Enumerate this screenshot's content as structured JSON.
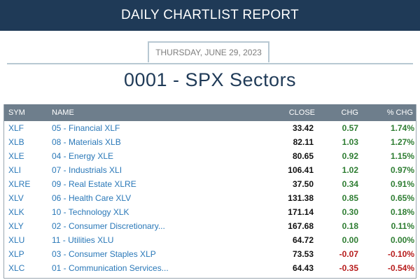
{
  "header": {
    "banner_title": "DAILY CHARTLIST REPORT",
    "date_label": "THURSDAY, JUNE 29, 2023",
    "page_title": "0001 - SPX Sectors"
  },
  "colors": {
    "banner_bg": "#1f3a57",
    "table_header_bg": "#6e7e8c",
    "link": "#2a78b8",
    "positive": "#2e7d32",
    "negative": "#b71c1c"
  },
  "table": {
    "columns": {
      "sym": "SYM",
      "name": "NAME",
      "close": "CLOSE",
      "chg": "CHG",
      "pct_chg": "% CHG"
    },
    "rows": [
      {
        "sym": "XLF",
        "name": "05 - Financial XLF",
        "close": "33.42",
        "chg": "0.57",
        "pct": "1.74%",
        "dir": "pos"
      },
      {
        "sym": "XLB",
        "name": "08 - Materials XLB",
        "close": "82.11",
        "chg": "1.03",
        "pct": "1.27%",
        "dir": "pos"
      },
      {
        "sym": "XLE",
        "name": "04 - Energy XLE",
        "close": "80.65",
        "chg": "0.92",
        "pct": "1.15%",
        "dir": "pos"
      },
      {
        "sym": "XLI",
        "name": "07 - Industrials XLI",
        "close": "106.41",
        "chg": "1.02",
        "pct": "0.97%",
        "dir": "pos"
      },
      {
        "sym": "XLRE",
        "name": "09 - Real Estate XLRE",
        "close": "37.50",
        "chg": "0.34",
        "pct": "0.91%",
        "dir": "pos"
      },
      {
        "sym": "XLV",
        "name": "06 - Health Care XLV",
        "close": "131.38",
        "chg": "0.85",
        "pct": "0.65%",
        "dir": "pos"
      },
      {
        "sym": "XLK",
        "name": "10 - Technology XLK",
        "close": "171.14",
        "chg": "0.30",
        "pct": "0.18%",
        "dir": "pos"
      },
      {
        "sym": "XLY",
        "name": "02 - Consumer Discretionary...",
        "close": "167.68",
        "chg": "0.18",
        "pct": "0.11%",
        "dir": "pos"
      },
      {
        "sym": "XLU",
        "name": "11 - Utilities XLU",
        "close": "64.72",
        "chg": "0.00",
        "pct": "0.00%",
        "dir": "pos"
      },
      {
        "sym": "XLP",
        "name": "03 - Consumer Staples XLP",
        "close": "73.53",
        "chg": "-0.07",
        "pct": "-0.10%",
        "dir": "neg"
      },
      {
        "sym": "XLC",
        "name": "01 - Communication Services...",
        "close": "64.43",
        "chg": "-0.35",
        "pct": "-0.54%",
        "dir": "neg"
      }
    ]
  }
}
